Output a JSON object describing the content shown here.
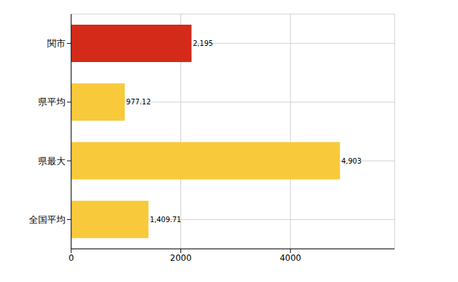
{
  "chart_data": {
    "type": "bar",
    "orientation": "horizontal",
    "categories": [
      "関市",
      "県平均",
      "県最大",
      "全国平均"
    ],
    "values": [
      2195,
      977.12,
      4903,
      1409.71
    ],
    "value_labels": [
      "2,195",
      "977.12",
      "4,903",
      "1,409.71"
    ],
    "colors": [
      "#d42a1a",
      "#f8c93a",
      "#f8c93a",
      "#f8c93a"
    ],
    "xlim": [
      0,
      5900
    ],
    "xticks": [
      0,
      2000,
      4000
    ],
    "grid": true,
    "data_labels": true
  }
}
